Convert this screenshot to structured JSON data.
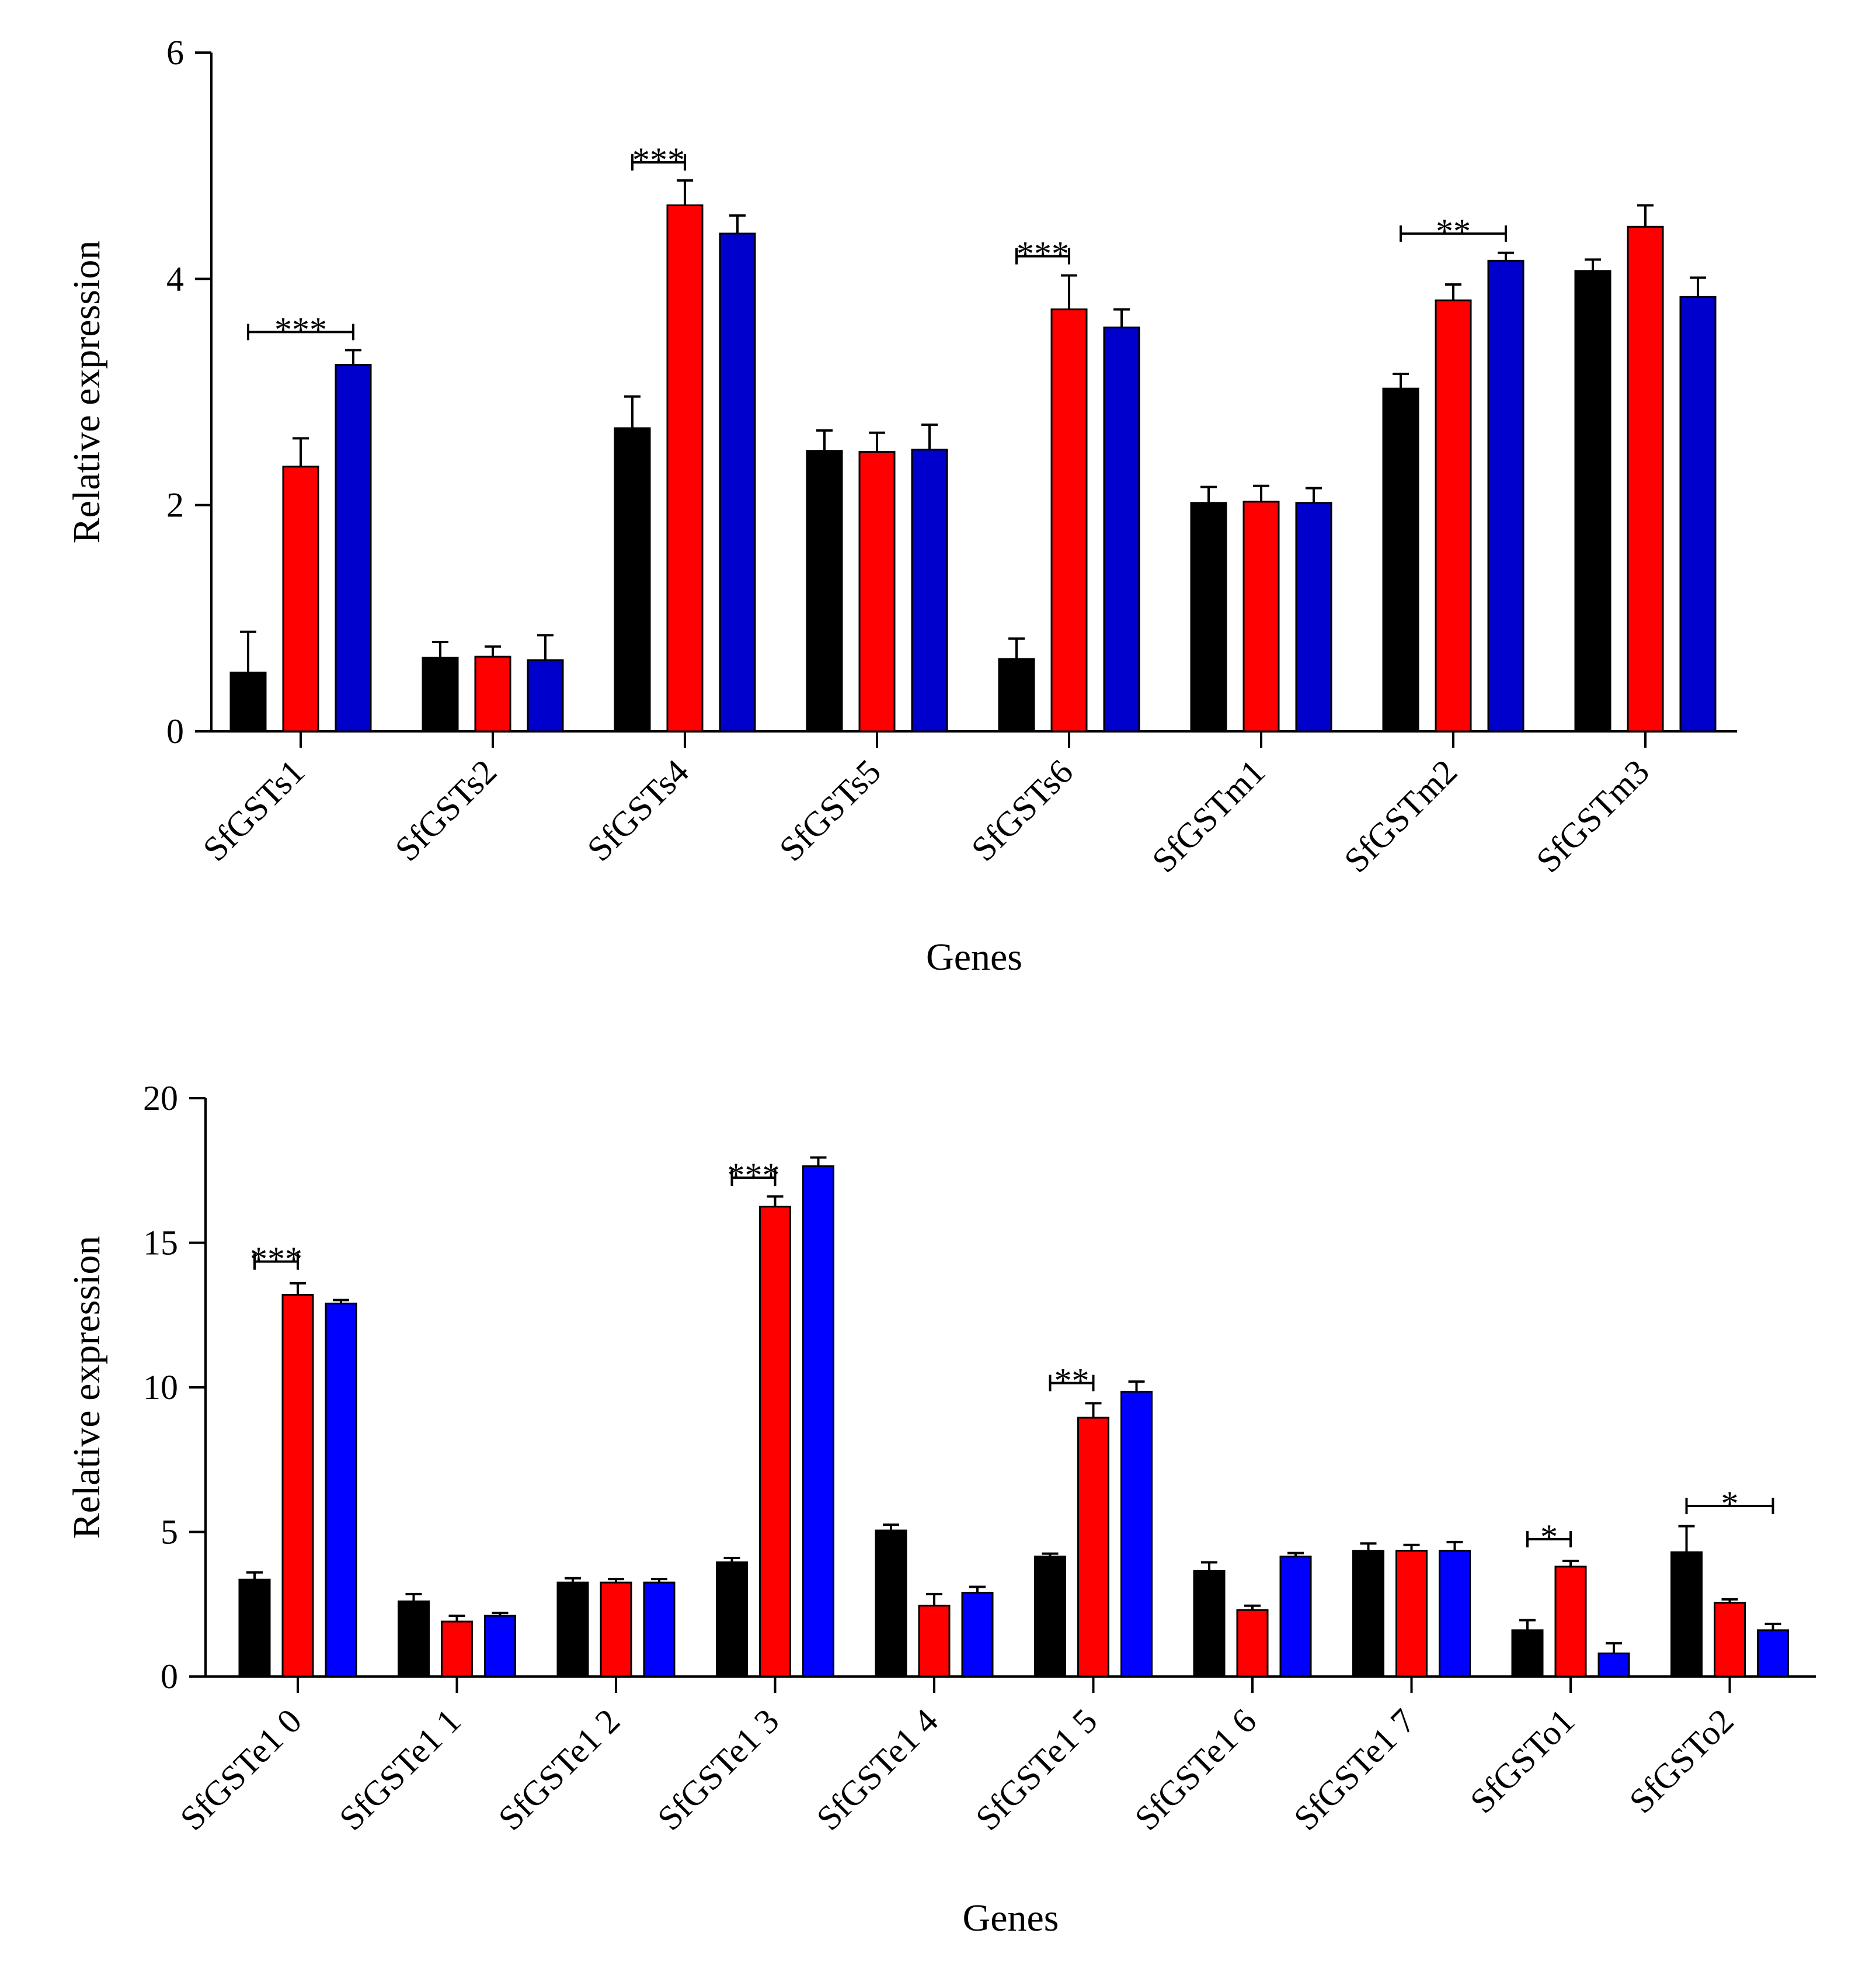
{
  "chart_data": [
    {
      "type": "bar",
      "xlabel": "Genes",
      "ylabel": "Relative expression",
      "ylim": [
        0,
        6
      ],
      "yticks": [
        0,
        2,
        4,
        6
      ],
      "grid": false,
      "colors": [
        "#000000",
        "#ff0000",
        "#0000cc"
      ],
      "categories": [
        "SfGSTs1",
        "SfGSTs2",
        "SfGSTs4",
        "SfGSTs5",
        "SfGSTs6",
        "SfGSTm1",
        "SfGSTm2",
        "SfGSTm3"
      ],
      "series": [
        {
          "values": [
            0.52,
            0.65,
            2.68,
            2.48,
            0.64,
            2.02,
            3.03,
            4.07
          ],
          "errors": [
            0.36,
            0.14,
            0.28,
            0.18,
            0.18,
            0.14,
            0.13,
            0.1
          ]
        },
        {
          "values": [
            2.34,
            0.66,
            4.65,
            2.47,
            3.73,
            2.03,
            3.81,
            4.46
          ],
          "errors": [
            0.25,
            0.09,
            0.22,
            0.17,
            0.3,
            0.14,
            0.14,
            0.19
          ]
        },
        {
          "values": [
            3.24,
            0.63,
            4.4,
            2.49,
            3.57,
            2.02,
            4.16,
            3.84
          ],
          "errors": [
            0.13,
            0.22,
            0.16,
            0.22,
            0.16,
            0.13,
            0.07,
            0.17
          ]
        }
      ],
      "annotations": [
        {
          "category": 0,
          "from": 0,
          "to": 2,
          "text": "***",
          "y": 3.53
        },
        {
          "category": 2,
          "from": 0,
          "to": 1,
          "text": "***",
          "y": 5.03
        },
        {
          "category": 4,
          "from": 0,
          "to": 1,
          "text": "***",
          "y": 4.2
        },
        {
          "category": 6,
          "from": 0,
          "to": 2,
          "text": "**",
          "y": 4.4
        }
      ]
    },
    {
      "type": "bar",
      "xlabel": "Genes",
      "ylabel": "Relative expression",
      "ylim": [
        0,
        20
      ],
      "yticks": [
        0,
        5,
        10,
        15,
        20
      ],
      "grid": false,
      "colors": [
        "#000000",
        "#ff0000",
        "#0000ff"
      ],
      "categories": [
        "SfGSTe1 0",
        "SfGSTe1 1",
        "SfGSTe1 2",
        "SfGSTe1 3",
        "SfGSTe1 4",
        "SfGSTe1 5",
        "SfGSTe1 6",
        "SfGSTe1 7",
        "SfGSTo1",
        "SfGSTo2"
      ],
      "series": [
        {
          "values": [
            3.35,
            2.6,
            3.25,
            3.95,
            5.05,
            4.15,
            3.65,
            4.35,
            1.6,
            4.3
          ],
          "errors": [
            0.25,
            0.25,
            0.15,
            0.15,
            0.2,
            0.1,
            0.3,
            0.25,
            0.35,
            0.9
          ]
        },
        {
          "values": [
            13.2,
            1.9,
            3.25,
            16.25,
            2.45,
            8.95,
            2.3,
            4.35,
            3.8,
            2.55
          ],
          "errors": [
            0.4,
            0.2,
            0.12,
            0.35,
            0.4,
            0.5,
            0.15,
            0.2,
            0.2,
            0.12
          ]
        },
        {
          "values": [
            12.9,
            2.1,
            3.25,
            17.65,
            2.9,
            9.85,
            4.15,
            4.35,
            0.8,
            1.6
          ],
          "errors": [
            0.12,
            0.1,
            0.12,
            0.3,
            0.2,
            0.35,
            0.12,
            0.3,
            0.35,
            0.22
          ]
        }
      ],
      "annotations": [
        {
          "category": 0,
          "from": 0,
          "to": 1,
          "text": "***",
          "y": 14.35
        },
        {
          "category": 3,
          "from": 0,
          "to": 1,
          "text": "***",
          "y": 17.25
        },
        {
          "category": 5,
          "from": 0,
          "to": 1,
          "text": "**",
          "y": 10.15
        },
        {
          "category": 8,
          "from": 0,
          "to": 1,
          "text": "*",
          "y": 4.75
        },
        {
          "category": 9,
          "from": 0,
          "to": 2,
          "text": "*",
          "y": 5.9
        }
      ]
    }
  ]
}
